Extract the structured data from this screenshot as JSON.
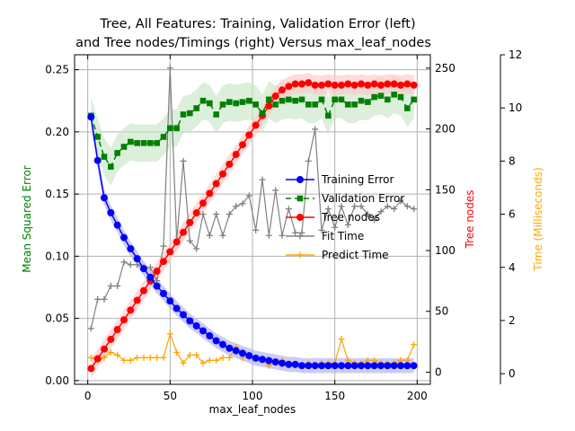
{
  "chart_data": {
    "type": "line",
    "title_line1": "Tree, All Features: Training, Validation Error (left)",
    "title_line2": "and Tree nodes/Timings (right) Versus max_leaf_nodes",
    "xlabel": "max_leaf_nodes",
    "ylabel_left": "Mean Squared Error",
    "ylabel_right1": "Tree nodes",
    "ylabel_right2": "Time (Milliseconds)",
    "xlim": [
      -8,
      208
    ],
    "ylim_left": [
      -0.003,
      0.262
    ],
    "ylim_nodes": [
      -10,
      261
    ],
    "ylim_time": [
      -0.4,
      12.0
    ],
    "x_ticks": [
      0,
      50,
      100,
      150,
      200
    ],
    "y_ticks_left": [
      "0.00",
      "0.05",
      "0.10",
      "0.15",
      "0.20",
      "0.25"
    ],
    "y_ticks_nodes": [
      0,
      50,
      100,
      150,
      200,
      250
    ],
    "y_ticks_time": [
      0,
      2,
      4,
      6,
      8,
      10,
      12
    ],
    "grid": true,
    "legend_position": "center-right",
    "colors": {
      "training": "#0000ff",
      "validation": "#008000",
      "nodes": "#ff0000",
      "fit": "#808080",
      "predict": "#ffa500",
      "band_training": "#b0b0f0",
      "band_validation": "#c8e6c8",
      "band_nodes": "#ffc8c8",
      "ylabel_left": "#008000",
      "ylabel_nodes": "#ff0000",
      "ylabel_time": "#ffa500"
    },
    "x": [
      2,
      6,
      10,
      14,
      18,
      22,
      26,
      30,
      34,
      38,
      42,
      46,
      50,
      54,
      58,
      62,
      66,
      70,
      74,
      78,
      82,
      86,
      90,
      94,
      98,
      102,
      106,
      110,
      114,
      118,
      122,
      126,
      130,
      134,
      138,
      142,
      146,
      150,
      154,
      158,
      162,
      166,
      170,
      174,
      178,
      182,
      186,
      190,
      194,
      198
    ],
    "series": [
      {
        "name": "Training Error",
        "values": [
          0.212,
          0.177,
          0.147,
          0.135,
          0.125,
          0.115,
          0.106,
          0.098,
          0.09,
          0.083,
          0.076,
          0.07,
          0.064,
          0.058,
          0.053,
          0.048,
          0.044,
          0.04,
          0.036,
          0.032,
          0.029,
          0.026,
          0.024,
          0.022,
          0.02,
          0.018,
          0.017,
          0.016,
          0.015,
          0.014,
          0.013,
          0.013,
          0.012,
          0.012,
          0.012,
          0.012,
          0.012,
          0.012,
          0.012,
          0.012,
          0.012,
          0.012,
          0.012,
          0.012,
          0.012,
          0.012,
          0.012,
          0.012,
          0.012,
          0.012
        ],
        "band": 0.006
      },
      {
        "name": "Validation Error",
        "values": [
          0.213,
          0.196,
          0.18,
          0.172,
          0.183,
          0.188,
          0.192,
          0.191,
          0.191,
          0.191,
          0.191,
          0.196,
          0.203,
          0.203,
          0.214,
          0.215,
          0.219,
          0.225,
          0.223,
          0.214,
          0.222,
          0.224,
          0.223,
          0.224,
          0.225,
          0.222,
          0.215,
          0.226,
          0.222,
          0.225,
          0.226,
          0.225,
          0.226,
          0.222,
          0.222,
          0.226,
          0.213,
          0.226,
          0.226,
          0.222,
          0.222,
          0.225,
          0.224,
          0.228,
          0.229,
          0.226,
          0.23,
          0.228,
          0.219,
          0.226
        ],
        "band": 0.015
      },
      {
        "name": "Tree nodes",
        "values": [
          3,
          11,
          19,
          27,
          35,
          43,
          51,
          59,
          67,
          75,
          83,
          91,
          99,
          107,
          115,
          123,
          131,
          139,
          147,
          155,
          163,
          171,
          179,
          187,
          195,
          203,
          211,
          219,
          227,
          232,
          235,
          237,
          237,
          238,
          236,
          236,
          237,
          236,
          236,
          237,
          236,
          237,
          236,
          237,
          236,
          237,
          237,
          236,
          237,
          236
        ],
        "band": 8
      },
      {
        "name": "Fit Time",
        "values": [
          1.7,
          2.8,
          2.8,
          3.3,
          3.3,
          4.2,
          4.1,
          4.1,
          4.0,
          4.0,
          3.5,
          4.8,
          11.5,
          5.0,
          8.0,
          5.0,
          4.7,
          6.0,
          5.2,
          6.0,
          5.2,
          6.0,
          6.3,
          6.4,
          6.7,
          5.4,
          7.3,
          5.2,
          6.9,
          5.2,
          6.2,
          5.3,
          5.3,
          8.0,
          9.2,
          5.4,
          6.2,
          5.5,
          6.3,
          5.6,
          6.3,
          6.3,
          6.0,
          5.8,
          6.1,
          6.3,
          6.2,
          6.5,
          6.3,
          6.2
        ]
      },
      {
        "name": "Predict Time",
        "values": [
          0.6,
          0.5,
          0.6,
          0.8,
          0.7,
          0.5,
          0.5,
          0.6,
          0.6,
          0.6,
          0.6,
          0.6,
          1.5,
          0.8,
          0.4,
          0.7,
          0.7,
          0.4,
          0.5,
          0.5,
          0.6,
          0.6,
          1.0,
          0.6,
          0.6,
          0.6,
          0.5,
          0.3,
          0.4,
          0.5,
          0.4,
          0.3,
          0.3,
          0.4,
          0.3,
          0.4,
          0.4,
          0.4,
          1.3,
          0.5,
          0.4,
          0.4,
          0.5,
          0.5,
          0.4,
          0.4,
          0.4,
          0.5,
          0.5,
          1.1
        ]
      }
    ]
  }
}
